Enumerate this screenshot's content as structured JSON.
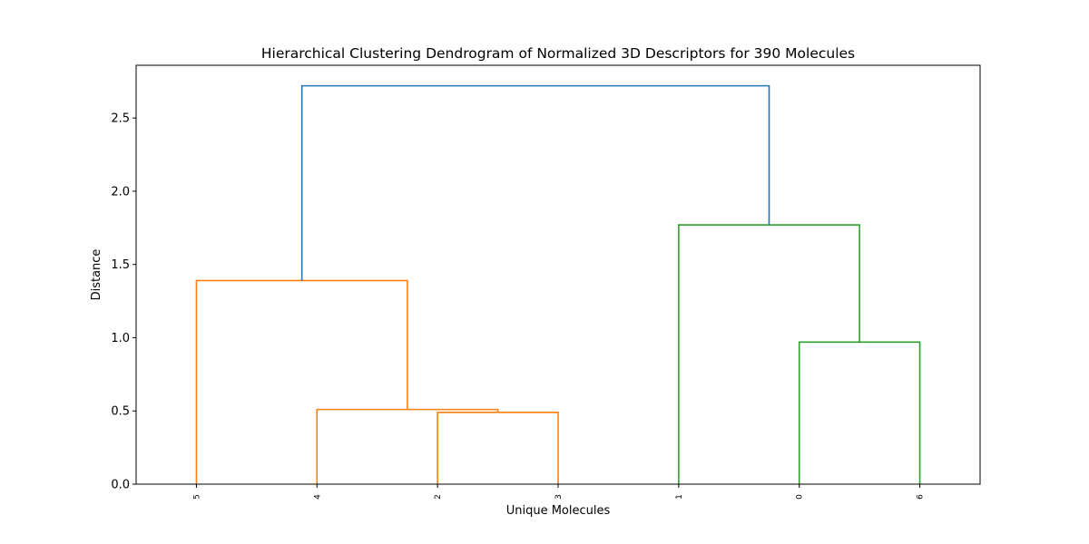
{
  "chart_data": {
    "type": "dendrogram",
    "title": "Hierarchical Clustering Dendrogram of Normalized 3D Descriptors for 390 Molecules",
    "xlabel": "Unique Molecules",
    "ylabel": "Distance",
    "ylim": [
      0,
      2.86
    ],
    "yticks": [
      0.0,
      0.5,
      1.0,
      1.5,
      2.0,
      2.5
    ],
    "ytick_labels": [
      "0.0",
      "0.5",
      "1.0",
      "1.5",
      "2.0",
      "2.5"
    ],
    "leaves": [
      "5",
      "4",
      "2",
      "3",
      "1",
      "0",
      "6"
    ],
    "grid": false,
    "colors": {
      "cluster_orange": "#ff7f0e",
      "cluster_green": "#2ca02c",
      "root_blue": "#1f77b4",
      "axis": "#000000"
    },
    "links": [
      {
        "left_pos": 2.0,
        "right_pos": 3.0,
        "height": 0.49,
        "color": "#ff7f0e"
      },
      {
        "left_pos": 1.0,
        "right_pos": 2.5,
        "height": 0.51,
        "color": "#ff7f0e"
      },
      {
        "left_pos": 0.0,
        "right_pos": 1.75,
        "height": 1.39,
        "color": "#ff7f0e"
      },
      {
        "left_pos": 5.0,
        "right_pos": 6.0,
        "height": 0.97,
        "color": "#2ca02c"
      },
      {
        "left_pos": 4.0,
        "right_pos": 5.5,
        "height": 1.77,
        "color": "#2ca02c"
      },
      {
        "left_pos": 0.875,
        "right_pos": 4.75,
        "height": 2.72,
        "color": "#1f77b4"
      }
    ],
    "child_heights": [
      [
        0,
        0
      ],
      [
        0,
        0.49
      ],
      [
        0,
        0.51
      ],
      [
        0,
        0
      ],
      [
        0,
        0.97
      ],
      [
        1.39,
        1.77
      ]
    ]
  }
}
